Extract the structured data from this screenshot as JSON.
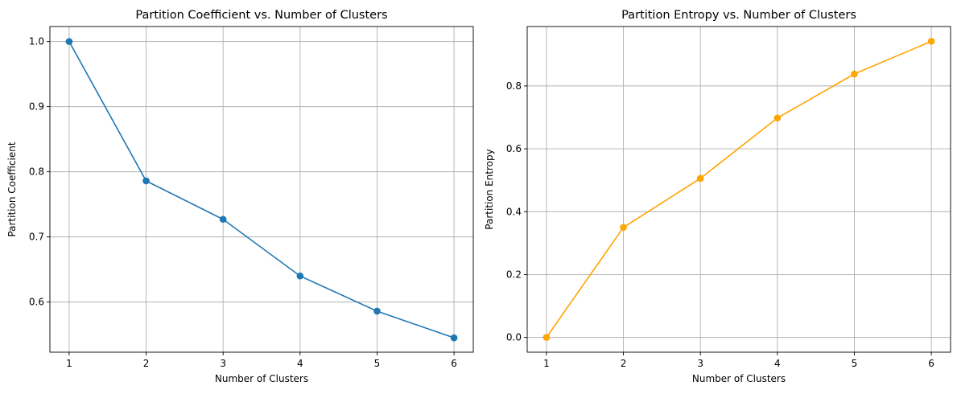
{
  "chart_data": [
    {
      "type": "line",
      "title": "Partition Coefficient vs. Number of Clusters",
      "xlabel": "Number of Clusters",
      "ylabel": "Partition Coefficient",
      "x": [
        1,
        2,
        3,
        4,
        5,
        6
      ],
      "series": [
        {
          "values": [
            1.0,
            0.786,
            0.727,
            0.64,
            0.586,
            0.545
          ],
          "color": "#1f77b4",
          "marker": "circle"
        }
      ],
      "xlim": [
        0.75,
        6.25
      ],
      "ylim": [
        0.523,
        1.023
      ],
      "xticks": [
        1,
        2,
        3,
        4,
        5,
        6
      ],
      "yticks": [
        0.6,
        0.7,
        0.8,
        0.9,
        1.0
      ],
      "ytick_labels": [
        "0.6",
        "0.7",
        "0.8",
        "0.9",
        "1.0"
      ],
      "grid": true
    },
    {
      "type": "line",
      "title": "Partition Entropy vs. Number of Clusters",
      "xlabel": "Number of Clusters",
      "ylabel": "Partition Entropy",
      "x": [
        1,
        2,
        3,
        4,
        5,
        6
      ],
      "series": [
        {
          "values": [
            0.0,
            0.35,
            0.506,
            0.698,
            0.838,
            0.942
          ],
          "color": "#ffa500",
          "marker": "circle"
        }
      ],
      "xlim": [
        0.75,
        6.25
      ],
      "ylim": [
        -0.047,
        0.989
      ],
      "xticks": [
        1,
        2,
        3,
        4,
        5,
        6
      ],
      "yticks": [
        0.0,
        0.2,
        0.4,
        0.6,
        0.8
      ],
      "ytick_labels": [
        "0.0",
        "0.2",
        "0.4",
        "0.6",
        "0.8"
      ],
      "grid": true
    }
  ]
}
